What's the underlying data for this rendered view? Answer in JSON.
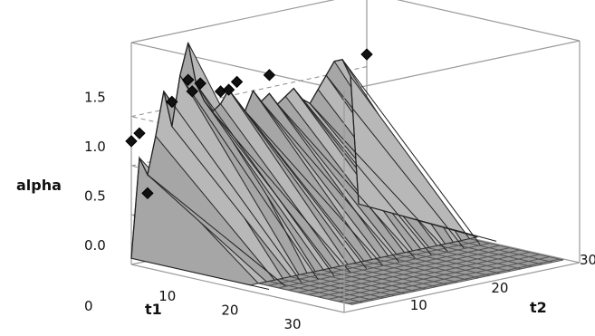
{
  "chart_data": {
    "type": "surface3d",
    "axes": {
      "x": {
        "label": "t1",
        "ticks": [
          "10",
          "20",
          "30"
        ],
        "range": [
          1,
          35
        ]
      },
      "y": {
        "label": "t2",
        "ticks": [
          "10",
          "20",
          "30"
        ],
        "range": [
          1,
          30
        ]
      },
      "z": {
        "label": "alpha",
        "ticks": [
          "0",
          "0.0",
          "0.5",
          "1.0",
          "1.5"
        ],
        "range": [
          0,
          1.8
        ]
      }
    },
    "grid": true,
    "surface_back_profile": [
      {
        "t2": 1,
        "alpha": 0.05
      },
      {
        "t2": 2,
        "alpha": 0.85
      },
      {
        "t2": 3,
        "alpha": 0.7
      },
      {
        "t2": 4,
        "alpha": 1.0
      },
      {
        "t2": 5,
        "alpha": 1.35
      },
      {
        "t2": 6,
        "alpha": 1.05
      },
      {
        "t2": 7,
        "alpha": 1.45
      },
      {
        "t2": 8,
        "alpha": 1.7
      },
      {
        "t2": 9,
        "alpha": 1.35
      },
      {
        "t2": 10,
        "alpha": 1.2
      },
      {
        "t2": 11,
        "alpha": 1.1
      },
      {
        "t2": 12,
        "alpha": 1.15
      },
      {
        "t2": 13,
        "alpha": 1.25
      },
      {
        "t2": 14,
        "alpha": 1.15
      },
      {
        "t2": 15,
        "alpha": 1.05
      },
      {
        "t2": 16,
        "alpha": 1.2
      },
      {
        "t2": 17,
        "alpha": 1.1
      },
      {
        "t2": 18,
        "alpha": 1.15
      },
      {
        "t2": 19,
        "alpha": 1.05
      },
      {
        "t2": 20,
        "alpha": 1.1
      },
      {
        "t2": 21,
        "alpha": 1.15
      },
      {
        "t2": 22,
        "alpha": 1.05
      },
      {
        "t2": 23,
        "alpha": 1.0
      },
      {
        "t2": 24,
        "alpha": 1.1
      },
      {
        "t2": 25,
        "alpha": 1.2
      },
      {
        "t2": 26,
        "alpha": 1.3
      },
      {
        "t2": 27,
        "alpha": 1.3
      },
      {
        "t2": 28,
        "alpha": 1.15
      },
      {
        "t2": 29,
        "alpha": 0.1
      }
    ],
    "points": [
      {
        "t1": 1,
        "t2": 1,
        "alpha": 1.0
      },
      {
        "t1": 1,
        "t2": 2,
        "alpha": 1.05
      },
      {
        "t1": 1,
        "t2": 3,
        "alpha": 0.55
      },
      {
        "t1": 1,
        "t2": 6,
        "alpha": 1.25
      },
      {
        "t1": 1,
        "t2": 8,
        "alpha": 1.4
      },
      {
        "t1": 1,
        "t2": 8.5,
        "alpha": 1.3
      },
      {
        "t1": 1,
        "t2": 9.5,
        "alpha": 1.35
      },
      {
        "t1": 1,
        "t2": 12,
        "alpha": 1.25
      },
      {
        "t1": 1,
        "t2": 13,
        "alpha": 1.25
      },
      {
        "t1": 1,
        "t2": 14,
        "alpha": 1.3
      },
      {
        "t1": 1,
        "t2": 18,
        "alpha": 1.3
      },
      {
        "t1": 1,
        "t2": 30,
        "alpha": 1.3
      }
    ]
  }
}
